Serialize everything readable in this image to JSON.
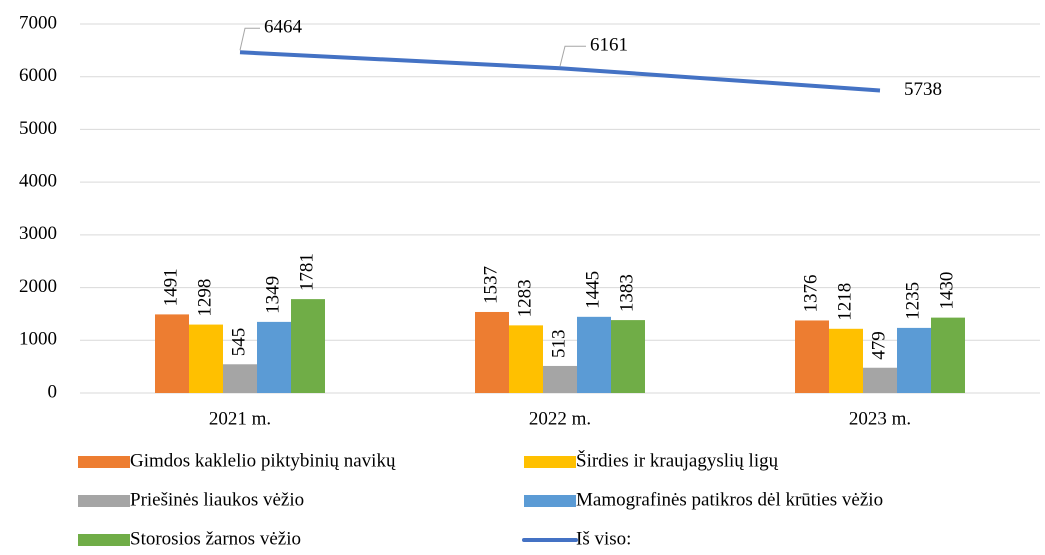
{
  "chart_data": {
    "type": "bar",
    "categories": [
      "2021 m.",
      "2022 m.",
      "2023 m."
    ],
    "series": [
      {
        "name": "Gimdos kaklelio piktybinių navikų",
        "color": "#ed7d31",
        "values": [
          1491,
          1537,
          1376
        ]
      },
      {
        "name": "Širdies ir kraujagyslių ligų",
        "color": "#ffc000",
        "values": [
          1298,
          1283,
          1218
        ]
      },
      {
        "name": "Priešinės liaukos vėžio",
        "color": "#a5a5a5",
        "values": [
          545,
          513,
          479
        ]
      },
      {
        "name": "Mamografinės patikros dėl krūties vėžio",
        "color": "#5b9bd5",
        "values": [
          1349,
          1445,
          1235
        ]
      },
      {
        "name": "Storosios žarnos vėžio",
        "color": "#70ad47",
        "values": [
          1781,
          1383,
          1430
        ]
      },
      {
        "name": "Iš viso:",
        "color": "#4472c4",
        "type": "line",
        "values": [
          6464,
          6161,
          5738
        ]
      }
    ],
    "ylim": [
      0,
      7000
    ],
    "yticks": [
      0,
      1000,
      2000,
      3000,
      4000,
      5000,
      6000,
      7000
    ],
    "grid": true
  }
}
